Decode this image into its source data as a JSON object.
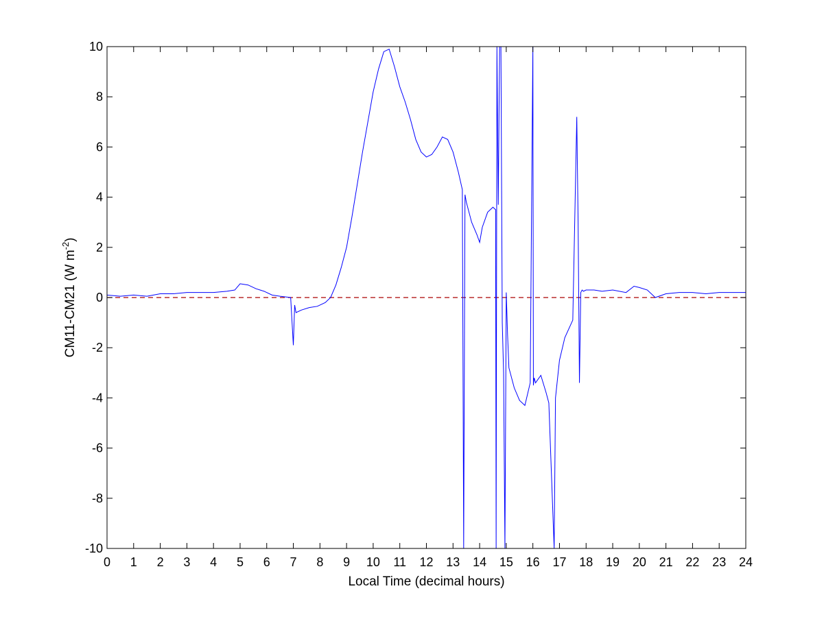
{
  "chart_data": {
    "type": "line",
    "title": "",
    "xlabel": "Local Time (decimal hours)",
    "ylabel": {
      "main": "CM11-CM21 (W m",
      "sup": "-2",
      "close": ")"
    },
    "xlim": [
      0,
      24
    ],
    "ylim": [
      -10,
      10
    ],
    "xticks": [
      "0",
      "1",
      "2",
      "3",
      "4",
      "5",
      "6",
      "7",
      "8",
      "9",
      "10",
      "11",
      "12",
      "13",
      "14",
      "15",
      "16",
      "17",
      "18",
      "19",
      "20",
      "21",
      "22",
      "23",
      "24"
    ],
    "yticks": [
      "-10",
      "-8",
      "-6",
      "-4",
      "-2",
      "0",
      "2",
      "4",
      "6",
      "8",
      "10"
    ],
    "grid": false,
    "legend": "none",
    "colors": {
      "series": "#0000ff",
      "reference": "#aa0000",
      "axes": "#000000"
    },
    "reference_line": {
      "y": 0,
      "style": "dashed"
    },
    "series": [
      {
        "values_description_free": true,
        "x": [
          0,
          0.5,
          1,
          1.5,
          2,
          2.5,
          3,
          3.5,
          4,
          4.5,
          4.8,
          5.0,
          5.3,
          5.6,
          5.9,
          6.2,
          6.5,
          6.9,
          7.0,
          7.05,
          7.1,
          7.3,
          7.6,
          7.9,
          8.2,
          8.4,
          8.6,
          8.8,
          9.0,
          9.2,
          9.4,
          9.6,
          9.8,
          10.0,
          10.2,
          10.4,
          10.6,
          10.8,
          11.0,
          11.2,
          11.4,
          11.6,
          11.8,
          12.0,
          12.2,
          12.4,
          12.6,
          12.8,
          13.0,
          13.2,
          13.35,
          13.4,
          13.45,
          13.5,
          13.7,
          13.9,
          14.0,
          14.1,
          14.3,
          14.5,
          14.6,
          14.62,
          14.65,
          14.7,
          14.75,
          14.8,
          14.85,
          14.9,
          14.95,
          15.0,
          15.05,
          15.1,
          15.3,
          15.5,
          15.7,
          15.9,
          16.0,
          16.02,
          16.05,
          16.1,
          16.3,
          16.5,
          16.6,
          16.8,
          16.85,
          16.9,
          17.0,
          17.2,
          17.5,
          17.65,
          17.7,
          17.75,
          17.8,
          17.85,
          17.9,
          18.0,
          18.3,
          18.6,
          19.0,
          19.5,
          19.8,
          20.0,
          20.3,
          20.6,
          21.0,
          21.5,
          22.0,
          22.5,
          23.0,
          23.5,
          24.0
        ],
        "values": [
          0.1,
          0.05,
          0.1,
          0.05,
          0.15,
          0.15,
          0.2,
          0.2,
          0.2,
          0.25,
          0.3,
          0.55,
          0.5,
          0.35,
          0.25,
          0.1,
          0.05,
          0.0,
          -1.9,
          -0.3,
          -0.6,
          -0.5,
          -0.4,
          -0.35,
          -0.2,
          0.0,
          0.5,
          1.2,
          2.0,
          3.2,
          4.5,
          5.8,
          7.0,
          8.2,
          9.1,
          9.8,
          9.9,
          9.2,
          8.4,
          7.8,
          7.1,
          6.3,
          5.8,
          5.6,
          5.7,
          6.0,
          6.4,
          6.3,
          5.8,
          5.0,
          4.3,
          -10,
          4.1,
          3.8,
          3.0,
          2.5,
          2.2,
          2.8,
          3.4,
          3.6,
          3.5,
          -10,
          10,
          3.7,
          10,
          10,
          -1.0,
          -3.0,
          -10,
          0.2,
          -1.5,
          -2.8,
          -3.6,
          -4.1,
          -4.3,
          -3.4,
          10,
          -3.5,
          -3.2,
          -3.4,
          -3.1,
          -3.8,
          -4.2,
          -10,
          -4.0,
          -3.5,
          -2.5,
          -1.6,
          -0.9,
          7.2,
          3.0,
          -3.4,
          0.2,
          0.3,
          0.25,
          0.3,
          0.3,
          0.25,
          0.3,
          0.2,
          0.45,
          0.4,
          0.3,
          0.0,
          0.15,
          0.2,
          0.2,
          0.15,
          0.2,
          0.2,
          0.2
        ]
      }
    ]
  }
}
